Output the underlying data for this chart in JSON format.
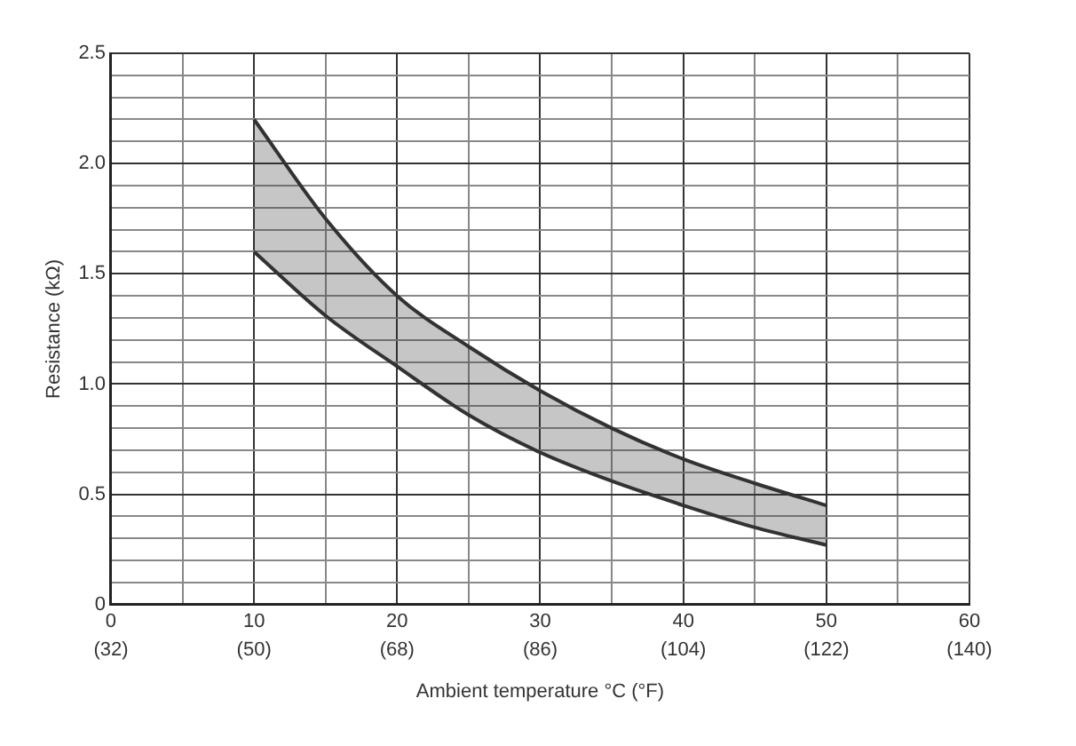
{
  "chart_data": {
    "type": "line",
    "xlabel": "Ambient temperature °C (°F)",
    "ylabel": "Resistance (kΩ)",
    "x": [
      10,
      15,
      20,
      25,
      30,
      35,
      40,
      45,
      50
    ],
    "series": [
      {
        "color": "#333333",
        "values": [
          2.2,
          1.75,
          1.4,
          1.17,
          0.97,
          0.8,
          0.66,
          0.55,
          0.45
        ]
      },
      {
        "color": "#333333",
        "values": [
          1.6,
          1.31,
          1.08,
          0.86,
          0.69,
          0.56,
          0.45,
          0.35,
          0.27
        ],
        "lower": [
          1.6,
          1.31,
          1.08,
          0.86,
          0.69,
          0.56,
          0.45,
          0.35,
          0.27
        ],
        "upper": [
          2.2,
          1.75,
          1.4,
          1.17,
          0.97,
          0.8,
          0.66,
          0.55,
          0.45
        ]
      }
    ],
    "xlim": [
      0,
      60
    ],
    "xticks": [
      0,
      {
        "value": 5,
        "label": null
      },
      10,
      {
        "value": 15,
        "label": null
      },
      20,
      {
        "value": 25,
        "label": null
      },
      30,
      {
        "value": 35,
        "label": null
      },
      40,
      {
        "value": 45,
        "label": null
      },
      50,
      {
        "value": 55,
        "label": null
      },
      60
    ],
    "x2lim": [
      32,
      140
    ],
    "x2ticks": [
      {
        "value": 32,
        "label": "(32)"
      },
      {
        "value": 50,
        "label": "(50)"
      },
      {
        "value": 68,
        "label": "(68)"
      },
      {
        "value": 86,
        "label": "(86)"
      },
      {
        "value": 104,
        "label": "(104)"
      },
      {
        "value": 122,
        "label": "(122)"
      },
      {
        "value": 140,
        "label": "(140)"
      }
    ],
    "ylim": [
      0,
      2.5
    ],
    "yticks": [
      {
        "value": 0,
        "label": "0"
      },
      {
        "value": 0.1,
        "label": null
      },
      {
        "value": 0.2,
        "label": null
      },
      {
        "value": 0.3,
        "label": null
      },
      {
        "value": 0.4,
        "label": null
      },
      {
        "value": 0.5,
        "label": "0.5"
      },
      {
        "value": 0.6,
        "label": null
      },
      {
        "value": 0.7,
        "label": null
      },
      {
        "value": 0.8,
        "label": null
      },
      {
        "value": 0.9,
        "label": null
      },
      {
        "value": 1,
        "label": "1.0"
      },
      {
        "value": 1.1,
        "label": null
      },
      {
        "value": 1.2,
        "label": null
      },
      {
        "value": 1.3,
        "label": null
      },
      {
        "value": 1.4,
        "label": null
      },
      {
        "value": 1.5,
        "label": "1.5"
      },
      {
        "value": 1.6,
        "label": null
      },
      {
        "value": 1.7,
        "label": null
      },
      {
        "value": 1.8,
        "label": null
      },
      {
        "value": 1.9,
        "label": null
      },
      {
        "value": 2,
        "label": "2.0"
      },
      {
        "value": 2.1,
        "label": null
      },
      {
        "value": 2.2,
        "label": null
      },
      {
        "value": 2.3,
        "label": null
      },
      {
        "value": 2.4,
        "label": null
      },
      {
        "value": 2.5,
        "label": "2.5"
      }
    ],
    "grid": true,
    "legend": false,
    "marker": "none",
    "line_style": "solid"
  }
}
